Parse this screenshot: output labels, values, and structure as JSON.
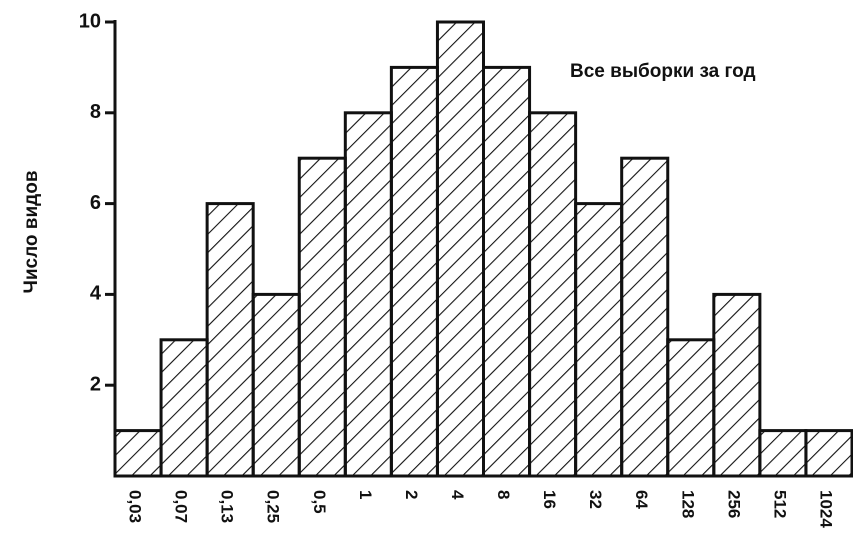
{
  "chart_data": {
    "type": "bar",
    "ylabel": "Число видов",
    "annotation": "Все выборки за год",
    "categories": [
      "0,03",
      "0,07",
      "0,13",
      "0,25",
      "0,5",
      "1",
      "2",
      "4",
      "8",
      "16",
      "32",
      "64",
      "128",
      "256",
      "512",
      "1024"
    ],
    "values": [
      1,
      3,
      6,
      4,
      7,
      8,
      9,
      10,
      9,
      8,
      6,
      7,
      3,
      4,
      1,
      1
    ],
    "color": "#111111",
    "ylim": [
      0,
      10
    ],
    "yticks": [
      2,
      4,
      6,
      8,
      10
    ],
    "grid": false
  }
}
